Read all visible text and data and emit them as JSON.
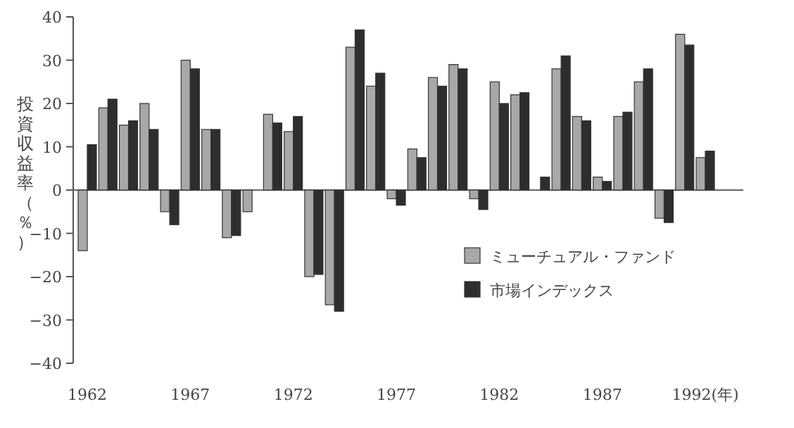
{
  "chart_data": {
    "type": "bar",
    "ylabel": "投資収益率（％）",
    "categories": [
      "1962",
      null,
      null,
      null,
      null,
      "1967",
      null,
      null,
      null,
      null,
      "1972",
      null,
      null,
      null,
      null,
      "1977",
      null,
      null,
      null,
      null,
      "1982",
      null,
      null,
      null,
      null,
      "1987",
      null,
      null,
      null,
      null,
      "1992(年)"
    ],
    "series": [
      {
        "name": "ミューチュアル・ファンド",
        "color": "#a8a8a8",
        "values": [
          -14,
          19,
          15,
          20,
          -5,
          30,
          14,
          -11,
          -5,
          17.5,
          13.5,
          -20,
          -26.5,
          33,
          24,
          -2,
          9.5,
          26,
          29,
          -2,
          25,
          22,
          null,
          28,
          17,
          3,
          17,
          25,
          -6.5,
          36,
          7.5
        ]
      },
      {
        "name": "市場インデックス",
        "color": "#2e2e2e",
        "values": [
          10.5,
          21,
          16,
          14,
          -8,
          28,
          14,
          -10.5,
          null,
          15.5,
          17,
          -19.5,
          -28,
          37,
          27,
          -3.5,
          7.5,
          24,
          28,
          -4.5,
          20,
          22.5,
          3,
          31,
          16,
          2,
          18,
          28,
          -7.5,
          33.5,
          9
        ]
      }
    ],
    "ylim": [
      -40,
      40
    ],
    "yticks": [
      -40,
      -30,
      -20,
      -10,
      0,
      10,
      20,
      30,
      40
    ],
    "legend": "right"
  }
}
